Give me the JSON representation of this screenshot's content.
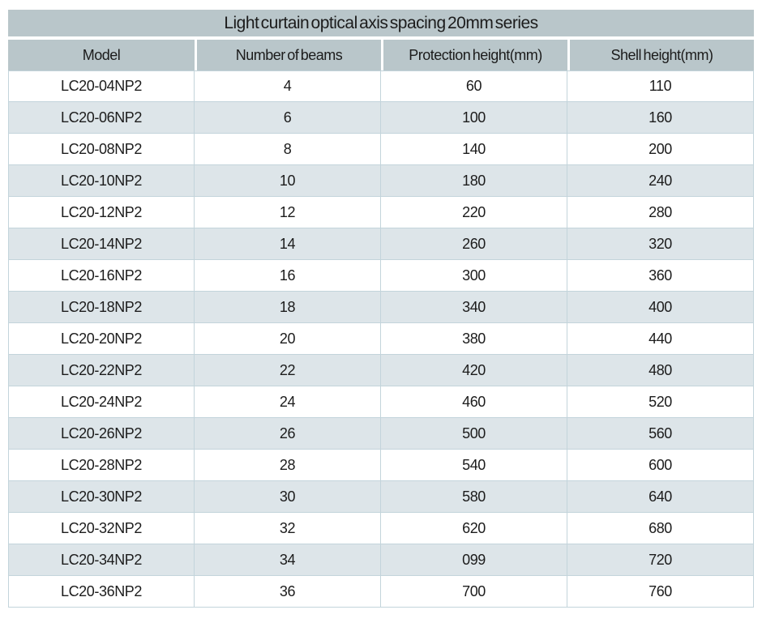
{
  "title": "Light curtain optical axis spacing 20mm series",
  "table": {
    "columns": [
      "Model",
      "Number of beams",
      "Protection height(mm)",
      "Shell height(mm)"
    ],
    "rows": [
      [
        "LC20-04NP2",
        "4",
        "60",
        "110"
      ],
      [
        "LC20-06NP2",
        "6",
        "100",
        "160"
      ],
      [
        "LC20-08NP2",
        "8",
        "140",
        "200"
      ],
      [
        "LC20-10NP2",
        "10",
        "180",
        "240"
      ],
      [
        "LC20-12NP2",
        "12",
        "220",
        "280"
      ],
      [
        "LC20-14NP2",
        "14",
        "260",
        "320"
      ],
      [
        "LC20-16NP2",
        "16",
        "300",
        "360"
      ],
      [
        "LC20-18NP2",
        "18",
        "340",
        "400"
      ],
      [
        "LC20-20NP2",
        "20",
        "380",
        "440"
      ],
      [
        "LC20-22NP2",
        "22",
        "420",
        "480"
      ],
      [
        "LC20-24NP2",
        "24",
        "460",
        "520"
      ],
      [
        "LC20-26NP2",
        "26",
        "500",
        "560"
      ],
      [
        "LC20-28NP2",
        "28",
        "540",
        "600"
      ],
      [
        "LC20-30NP2",
        "30",
        "580",
        "640"
      ],
      [
        "LC20-32NP2",
        "32",
        "620",
        "680"
      ],
      [
        "LC20-34NP2",
        "34",
        "099",
        "720"
      ],
      [
        "LC20-36NP2",
        "36",
        "700",
        "760"
      ]
    ]
  },
  "colors": {
    "header_bg": "#b9c6ca",
    "alt_row_bg": "#dde5e9",
    "row_bg": "#ffffff",
    "border": "#c3d4db",
    "text": "#1c1c1c",
    "page_bg": "#ffffff"
  }
}
